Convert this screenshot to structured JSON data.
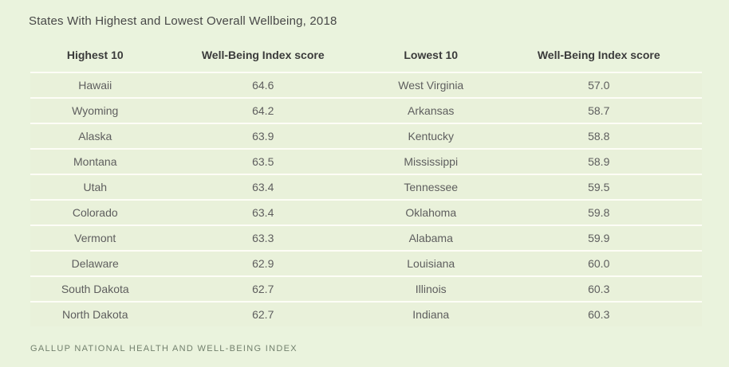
{
  "title": "States With Highest and Lowest Overall Wellbeing, 2018",
  "source": "GALLUP NATIONAL HEALTH AND WELL-BEING INDEX",
  "colors": {
    "page_background": "#eaf3dd",
    "row_background": "#e9f1da",
    "row_divider": "#fdfdf6",
    "title_text": "#474747",
    "header_text": "#3b3b3b",
    "cell_text": "#5e5e5e",
    "source_text": "#72806d"
  },
  "table": {
    "columns": [
      "Highest 10",
      "Well-Being Index score",
      "Lowest 10",
      "Well-Being Index score"
    ],
    "rows": [
      {
        "highest_state": "Hawaii",
        "highest_score": "64.6",
        "lowest_state": "West Virginia",
        "lowest_score": "57.0"
      },
      {
        "highest_state": "Wyoming",
        "highest_score": "64.2",
        "lowest_state": "Arkansas",
        "lowest_score": "58.7"
      },
      {
        "highest_state": "Alaska",
        "highest_score": "63.9",
        "lowest_state": "Kentucky",
        "lowest_score": "58.8"
      },
      {
        "highest_state": "Montana",
        "highest_score": "63.5",
        "lowest_state": "Mississippi",
        "lowest_score": "58.9"
      },
      {
        "highest_state": "Utah",
        "highest_score": "63.4",
        "lowest_state": "Tennessee",
        "lowest_score": "59.5"
      },
      {
        "highest_state": "Colorado",
        "highest_score": "63.4",
        "lowest_state": "Oklahoma",
        "lowest_score": "59.8"
      },
      {
        "highest_state": "Vermont",
        "highest_score": "63.3",
        "lowest_state": "Alabama",
        "lowest_score": "59.9"
      },
      {
        "highest_state": "Delaware",
        "highest_score": "62.9",
        "lowest_state": "Louisiana",
        "lowest_score": "60.0"
      },
      {
        "highest_state": "South Dakota",
        "highest_score": "62.7",
        "lowest_state": "Illinois",
        "lowest_score": "60.3"
      },
      {
        "highest_state": "North Dakota",
        "highest_score": "62.7",
        "lowest_state": "Indiana",
        "lowest_score": "60.3"
      }
    ]
  },
  "chart_data": {
    "type": "table",
    "title": "States With Highest and Lowest Overall Wellbeing, 2018",
    "columns": [
      "Highest 10",
      "Well-Being Index score",
      "Lowest 10",
      "Well-Being Index score"
    ],
    "highest_10": [
      {
        "state": "Hawaii",
        "score": 64.6
      },
      {
        "state": "Wyoming",
        "score": 64.2
      },
      {
        "state": "Alaska",
        "score": 63.9
      },
      {
        "state": "Montana",
        "score": 63.5
      },
      {
        "state": "Utah",
        "score": 63.4
      },
      {
        "state": "Colorado",
        "score": 63.4
      },
      {
        "state": "Vermont",
        "score": 63.3
      },
      {
        "state": "Delaware",
        "score": 62.9
      },
      {
        "state": "South Dakota",
        "score": 62.7
      },
      {
        "state": "North Dakota",
        "score": 62.7
      }
    ],
    "lowest_10": [
      {
        "state": "West Virginia",
        "score": 57.0
      },
      {
        "state": "Arkansas",
        "score": 58.7
      },
      {
        "state": "Kentucky",
        "score": 58.8
      },
      {
        "state": "Mississippi",
        "score": 58.9
      },
      {
        "state": "Tennessee",
        "score": 59.5
      },
      {
        "state": "Oklahoma",
        "score": 59.8
      },
      {
        "state": "Alabama",
        "score": 59.9
      },
      {
        "state": "Louisiana",
        "score": 60.0
      },
      {
        "state": "Illinois",
        "score": 60.3
      },
      {
        "state": "Indiana",
        "score": 60.3
      }
    ],
    "source": "GALLUP NATIONAL HEALTH AND WELL-BEING INDEX"
  }
}
